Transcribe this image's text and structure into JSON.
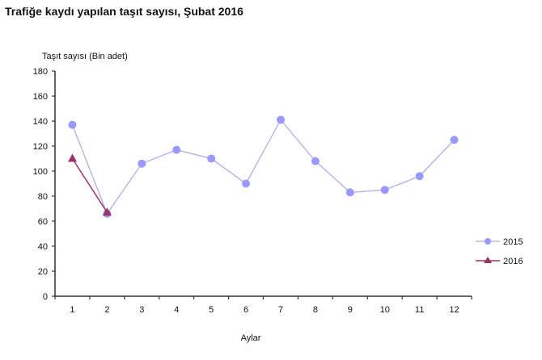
{
  "title": "Trafiğe kaydı yapılan taşıt sayısı, Şubat 2016",
  "chart_data": {
    "type": "line",
    "title": "Trafiğe kaydı yapılan taşıt sayısı, Şubat 2016",
    "xlabel": "Aylar",
    "ylabel": "Taşıt sayısı (Bin adet)",
    "categories": [
      "1",
      "2",
      "3",
      "4",
      "5",
      "6",
      "7",
      "8",
      "9",
      "10",
      "11",
      "12"
    ],
    "ylim": [
      0,
      180
    ],
    "yticks": [
      0,
      20,
      40,
      60,
      80,
      100,
      120,
      140,
      160,
      180
    ],
    "grid": false,
    "legend_position": "right",
    "series": [
      {
        "name": "2015",
        "color": "#9999ff",
        "line_color": "#b8b8e6",
        "marker": "circle",
        "values": [
          137,
          66,
          106,
          117,
          110,
          90,
          141,
          108,
          83,
          85,
          96,
          125
        ]
      },
      {
        "name": "2016",
        "color": "#993366",
        "line_color": "#993366",
        "marker": "triangle",
        "values": [
          110,
          67
        ]
      }
    ]
  }
}
